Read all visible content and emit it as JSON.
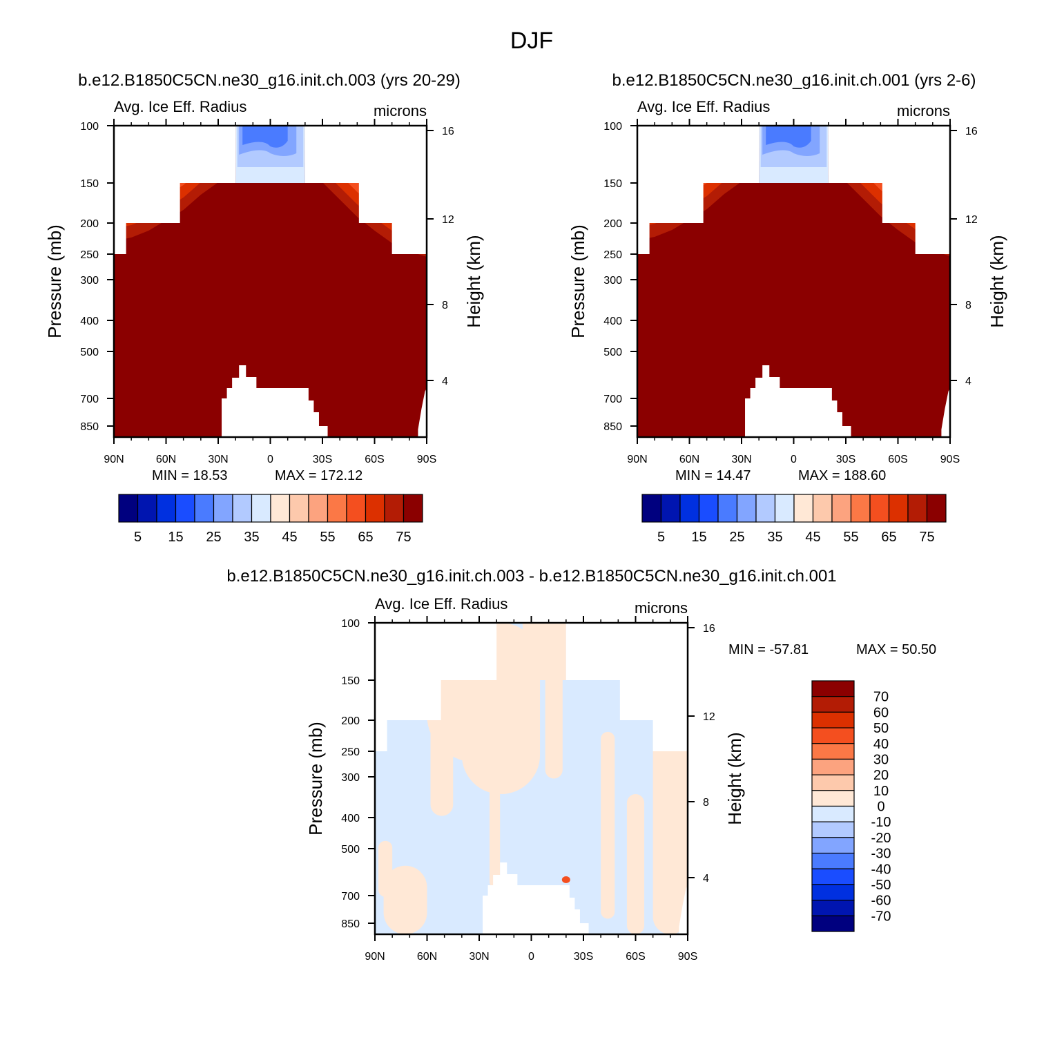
{
  "figure": {
    "title": "DJF"
  },
  "panels": [
    {
      "case_title": "b.e12.B1850C5CN.ne30_g16.init.ch.003 (yrs 20-29)",
      "variable": "Avg. Ice Eff. Radius",
      "units": "microns",
      "min_text": "MIN =   18.53",
      "max_text": "MAX = 172.12"
    },
    {
      "case_title": "b.e12.B1850C5CN.ne30_g16.init.ch.001 (yrs 2-6)",
      "variable": "Avg. Ice Eff. Radius",
      "units": "microns",
      "min_text": "MIN =   14.47",
      "max_text": "MAX = 188.60"
    },
    {
      "case_title": "b.e12.B1850C5CN.ne30_g16.init.ch.003 - b.e12.B1850C5CN.ne30_g16.init.ch.001",
      "variable": "Avg. Ice Eff. Radius",
      "units": "microns",
      "min_text": "MIN = -57.81",
      "max_text": "MAX =   50.50"
    }
  ],
  "axes": {
    "ylabel_left": "Pressure (mb)",
    "ylabel_right": "Height (km)",
    "pressure_ticks": [
      "100",
      "150",
      "200",
      "250",
      "300",
      "400",
      "500",
      "700",
      "850"
    ],
    "height_ticks": [
      "16",
      "12",
      "8",
      "4"
    ],
    "lat_ticks": [
      "90N",
      "60N",
      "30N",
      "0",
      "30S",
      "60S",
      "90S"
    ]
  },
  "colorbars": {
    "abs_labels": [
      "5",
      "15",
      "25",
      "35",
      "45",
      "55",
      "65",
      "75"
    ],
    "abs_colors": [
      "#00007f",
      "#0015b0",
      "#0030e0",
      "#1a4dff",
      "#4a7bff",
      "#82a5ff",
      "#b2caff",
      "#d9eaff",
      "#ffe8d6",
      "#fdc9ac",
      "#fca37f",
      "#fb7846",
      "#f44f1f",
      "#dc3000",
      "#b31c05",
      "#8b0000"
    ],
    "diff_labels": [
      "70",
      "60",
      "50",
      "40",
      "30",
      "20",
      "10",
      "0",
      "-10",
      "-20",
      "-30",
      "-40",
      "-50",
      "-60",
      "-70"
    ],
    "diff_colors": [
      "#8b0000",
      "#b31c05",
      "#dc3000",
      "#f44f1f",
      "#fb7846",
      "#fca37f",
      "#fdc9ac",
      "#ffe8d6",
      "#d9eaff",
      "#b2caff",
      "#82a5ff",
      "#4a7bff",
      "#1a4dff",
      "#0030e0",
      "#0015b0",
      "#00007f"
    ]
  },
  "chart_data": [
    {
      "type": "heatmap",
      "title": "b.e12.B1850C5CN.ne30_g16.init.ch.003 (yrs 20-29)",
      "subtitle": "Avg. Ice Eff. Radius (microns)",
      "xlabel": "",
      "ylabel": "Pressure (mb)",
      "ylabel_right": "Height (km)",
      "x_ticks": [
        "90N",
        "60N",
        "30N",
        "0",
        "30S",
        "60S",
        "90S"
      ],
      "y_ticks": [
        100,
        150,
        200,
        250,
        300,
        400,
        500,
        700,
        850
      ],
      "y_scale": "log-pressure",
      "contour_levels": [
        5,
        10,
        15,
        20,
        25,
        30,
        35,
        40,
        45,
        50,
        55,
        60,
        65,
        70,
        75
      ],
      "min": 18.53,
      "max": 172.12
    },
    {
      "type": "heatmap",
      "title": "b.e12.B1850C5CN.ne30_g16.init.ch.001 (yrs 2-6)",
      "subtitle": "Avg. Ice Eff. Radius (microns)",
      "xlabel": "",
      "ylabel": "Pressure (mb)",
      "ylabel_right": "Height (km)",
      "x_ticks": [
        "90N",
        "60N",
        "30N",
        "0",
        "30S",
        "60S",
        "90S"
      ],
      "y_ticks": [
        100,
        150,
        200,
        250,
        300,
        400,
        500,
        700,
        850
      ],
      "y_scale": "log-pressure",
      "contour_levels": [
        5,
        10,
        15,
        20,
        25,
        30,
        35,
        40,
        45,
        50,
        55,
        60,
        65,
        70,
        75
      ],
      "min": 14.47,
      "max": 188.6
    },
    {
      "type": "heatmap",
      "title": "b.e12.B1850C5CN.ne30_g16.init.ch.003 - b.e12.B1850C5CN.ne30_g16.init.ch.001",
      "subtitle": "Avg. Ice Eff. Radius (microns)",
      "xlabel": "",
      "ylabel": "Pressure (mb)",
      "ylabel_right": "Height (km)",
      "x_ticks": [
        "90N",
        "60N",
        "30N",
        "0",
        "30S",
        "60S",
        "90S"
      ],
      "y_ticks": [
        100,
        150,
        200,
        250,
        300,
        400,
        500,
        700,
        850
      ],
      "y_scale": "log-pressure",
      "contour_levels": [
        -70,
        -60,
        -50,
        -40,
        -30,
        -20,
        -10,
        0,
        10,
        20,
        30,
        40,
        50,
        60,
        70
      ],
      "min": -57.81,
      "max": 50.5
    }
  ]
}
